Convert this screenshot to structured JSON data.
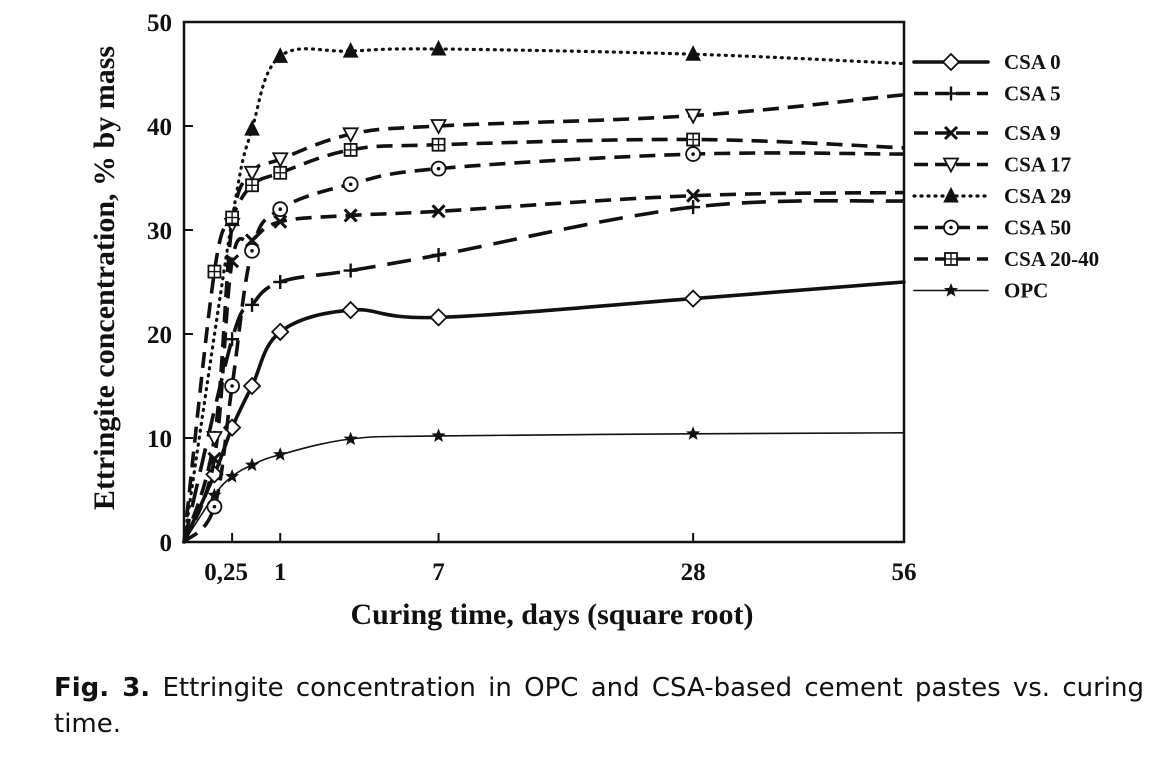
{
  "chart_data": {
    "type": "line",
    "xlabel": "Curing time, days (square root)",
    "ylabel": "Ettringite concentration, % by mass",
    "x_scale": "sqrt",
    "xlim": [
      0,
      56
    ],
    "ylim": [
      0,
      50
    ],
    "x_ticks": [
      {
        "value": 0.25,
        "label": "0,25"
      },
      {
        "value": 1,
        "label": "1"
      },
      {
        "value": 7,
        "label": "7"
      },
      {
        "value": 28,
        "label": "28"
      },
      {
        "value": 56,
        "label": "56"
      }
    ],
    "y_ticks": [
      0,
      10,
      20,
      30,
      40,
      50
    ],
    "grid": false,
    "legend_position": "right",
    "series": [
      {
        "name": "CSA 0",
        "marker": "diamond-open",
        "line_style": "solid-thick",
        "points": [
          [
            0,
            0
          ],
          [
            0.1,
            6.5
          ],
          [
            0.25,
            11
          ],
          [
            0.5,
            15
          ],
          [
            1,
            20.2
          ],
          [
            3,
            22.3
          ],
          [
            7,
            21.6
          ],
          [
            28,
            23.4
          ],
          [
            56,
            25
          ]
        ]
      },
      {
        "name": "CSA 5",
        "marker": "plus",
        "line_style": "long-dash",
        "points": [
          [
            0,
            0
          ],
          [
            0.25,
            19.5
          ],
          [
            0.5,
            22.8
          ],
          [
            1,
            25
          ],
          [
            3,
            26.1
          ],
          [
            7,
            27.6
          ],
          [
            28,
            32.2
          ],
          [
            56,
            32.8
          ]
        ]
      },
      {
        "name": "CSA 9",
        "marker": "x",
        "line_style": "dash",
        "points": [
          [
            0,
            0
          ],
          [
            0.1,
            8
          ],
          [
            0.25,
            27
          ],
          [
            0.5,
            29
          ],
          [
            1,
            30.8
          ],
          [
            3,
            31.4
          ],
          [
            7,
            31.8
          ],
          [
            28,
            33.3
          ],
          [
            56,
            33.6
          ]
        ]
      },
      {
        "name": "CSA 17",
        "marker": "triangle-down-open",
        "line_style": "dash",
        "points": [
          [
            0,
            0
          ],
          [
            0.1,
            10
          ],
          [
            0.25,
            30.5
          ],
          [
            0.5,
            35.5
          ],
          [
            1,
            36.8
          ],
          [
            3,
            39.2
          ],
          [
            7,
            40
          ],
          [
            28,
            41
          ],
          [
            56,
            43
          ]
        ]
      },
      {
        "name": "CSA 29",
        "marker": "triangle-filled",
        "line_style": "dotted",
        "points": [
          [
            0,
            0
          ],
          [
            0.25,
            31
          ],
          [
            0.5,
            39.7
          ],
          [
            1,
            46.7
          ],
          [
            3,
            47.2
          ],
          [
            7,
            47.4
          ],
          [
            28,
            46.9
          ],
          [
            56,
            46
          ]
        ]
      },
      {
        "name": "CSA 50",
        "marker": "circle-dot",
        "line_style": "dash",
        "points": [
          [
            0,
            0
          ],
          [
            0.1,
            3.4
          ],
          [
            0.25,
            15
          ],
          [
            0.5,
            28
          ],
          [
            1,
            32
          ],
          [
            3,
            34.4
          ],
          [
            7,
            35.9
          ],
          [
            28,
            37.3
          ],
          [
            56,
            37.3
          ]
        ]
      },
      {
        "name": "CSA 20-40",
        "marker": "square-plus",
        "line_style": "dash",
        "points": [
          [
            0,
            0
          ],
          [
            0.1,
            26
          ],
          [
            0.25,
            31.2
          ],
          [
            0.5,
            34.3
          ],
          [
            1,
            35.5
          ],
          [
            3,
            37.7
          ],
          [
            7,
            38.2
          ],
          [
            28,
            38.7
          ],
          [
            56,
            37.9
          ]
        ]
      },
      {
        "name": "OPC",
        "marker": "star",
        "line_style": "solid-thin",
        "points": [
          [
            0,
            0
          ],
          [
            0.1,
            4.5
          ],
          [
            0.25,
            6.3
          ],
          [
            0.5,
            7.4
          ],
          [
            1,
            8.4
          ],
          [
            3,
            9.9
          ],
          [
            7,
            10.2
          ],
          [
            28,
            10.4
          ],
          [
            56,
            10.5
          ]
        ]
      }
    ]
  },
  "caption": {
    "label": "Fig. 3.",
    "text": "Ettringite concentration in OPC and CSA-based cement pastes vs. curing time."
  }
}
